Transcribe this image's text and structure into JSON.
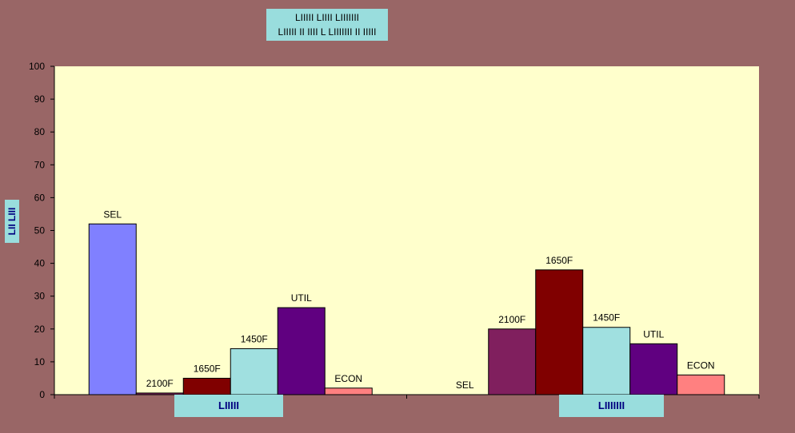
{
  "chart_data": {
    "type": "bar",
    "title": [
      "LIIIII LIIII LIIIIIII",
      "LIIIII II IIII L LIIIIIII II IIIII"
    ],
    "ylabel": "LII LIII",
    "xlabel": "",
    "ylim": [
      0,
      100
    ],
    "yticks": [
      0,
      10,
      20,
      30,
      40,
      50,
      60,
      70,
      80,
      90,
      100
    ],
    "categories": [
      "LIIIII",
      "LIIIIIII"
    ],
    "series": [
      {
        "name": "SEL",
        "color": "#8080ff",
        "values": [
          52,
          0
        ]
      },
      {
        "name": "2100F",
        "color": "#801f5e",
        "values": [
          0.5,
          20
        ]
      },
      {
        "name": "1650F",
        "color": "#800000",
        "values": [
          5,
          38
        ]
      },
      {
        "name": "1450F",
        "color": "#a0e0e0",
        "values": [
          14,
          20.5
        ]
      },
      {
        "name": "UTIL",
        "color": "#600080",
        "values": [
          26.5,
          15.5
        ]
      },
      {
        "name": "ECON",
        "color": "#ff8080",
        "values": [
          2,
          6
        ]
      }
    ],
    "grid": false,
    "legend": "none"
  }
}
